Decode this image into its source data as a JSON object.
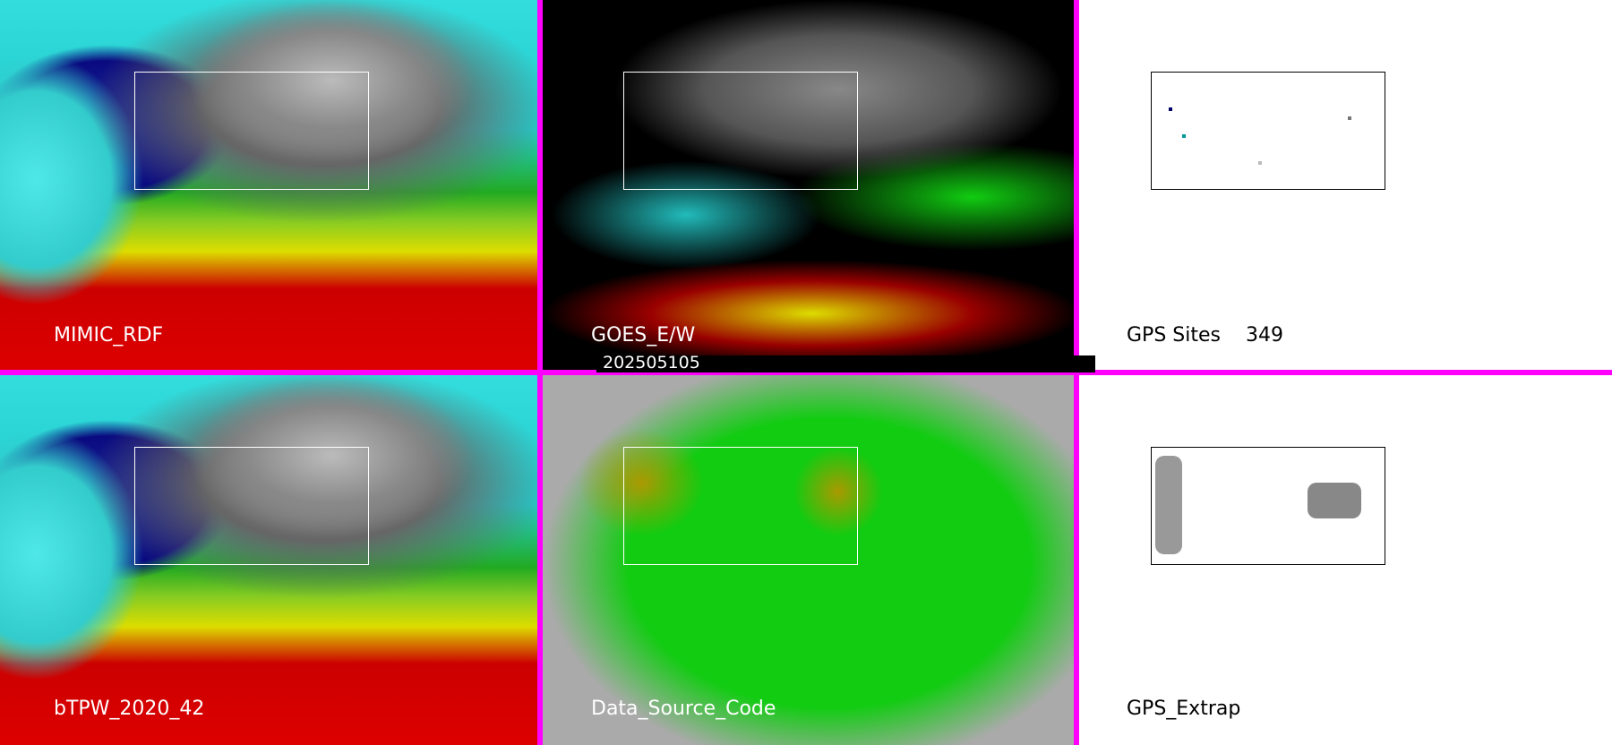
{
  "panels": [
    {
      "label": "MIMIC_RDF"
    },
    {
      "label": "GOES_E/W"
    },
    {
      "label": "GPS Sites",
      "count": "349"
    },
    {
      "label": "bTPW_2020_42"
    },
    {
      "label": "Data_Source_Code"
    },
    {
      "label": "GPS_Extrap"
    }
  ],
  "timestamp": "202505105",
  "colors": {
    "separator": "#ff00ff",
    "label_on_image": "#ffffff",
    "label_on_white": "#000000"
  }
}
